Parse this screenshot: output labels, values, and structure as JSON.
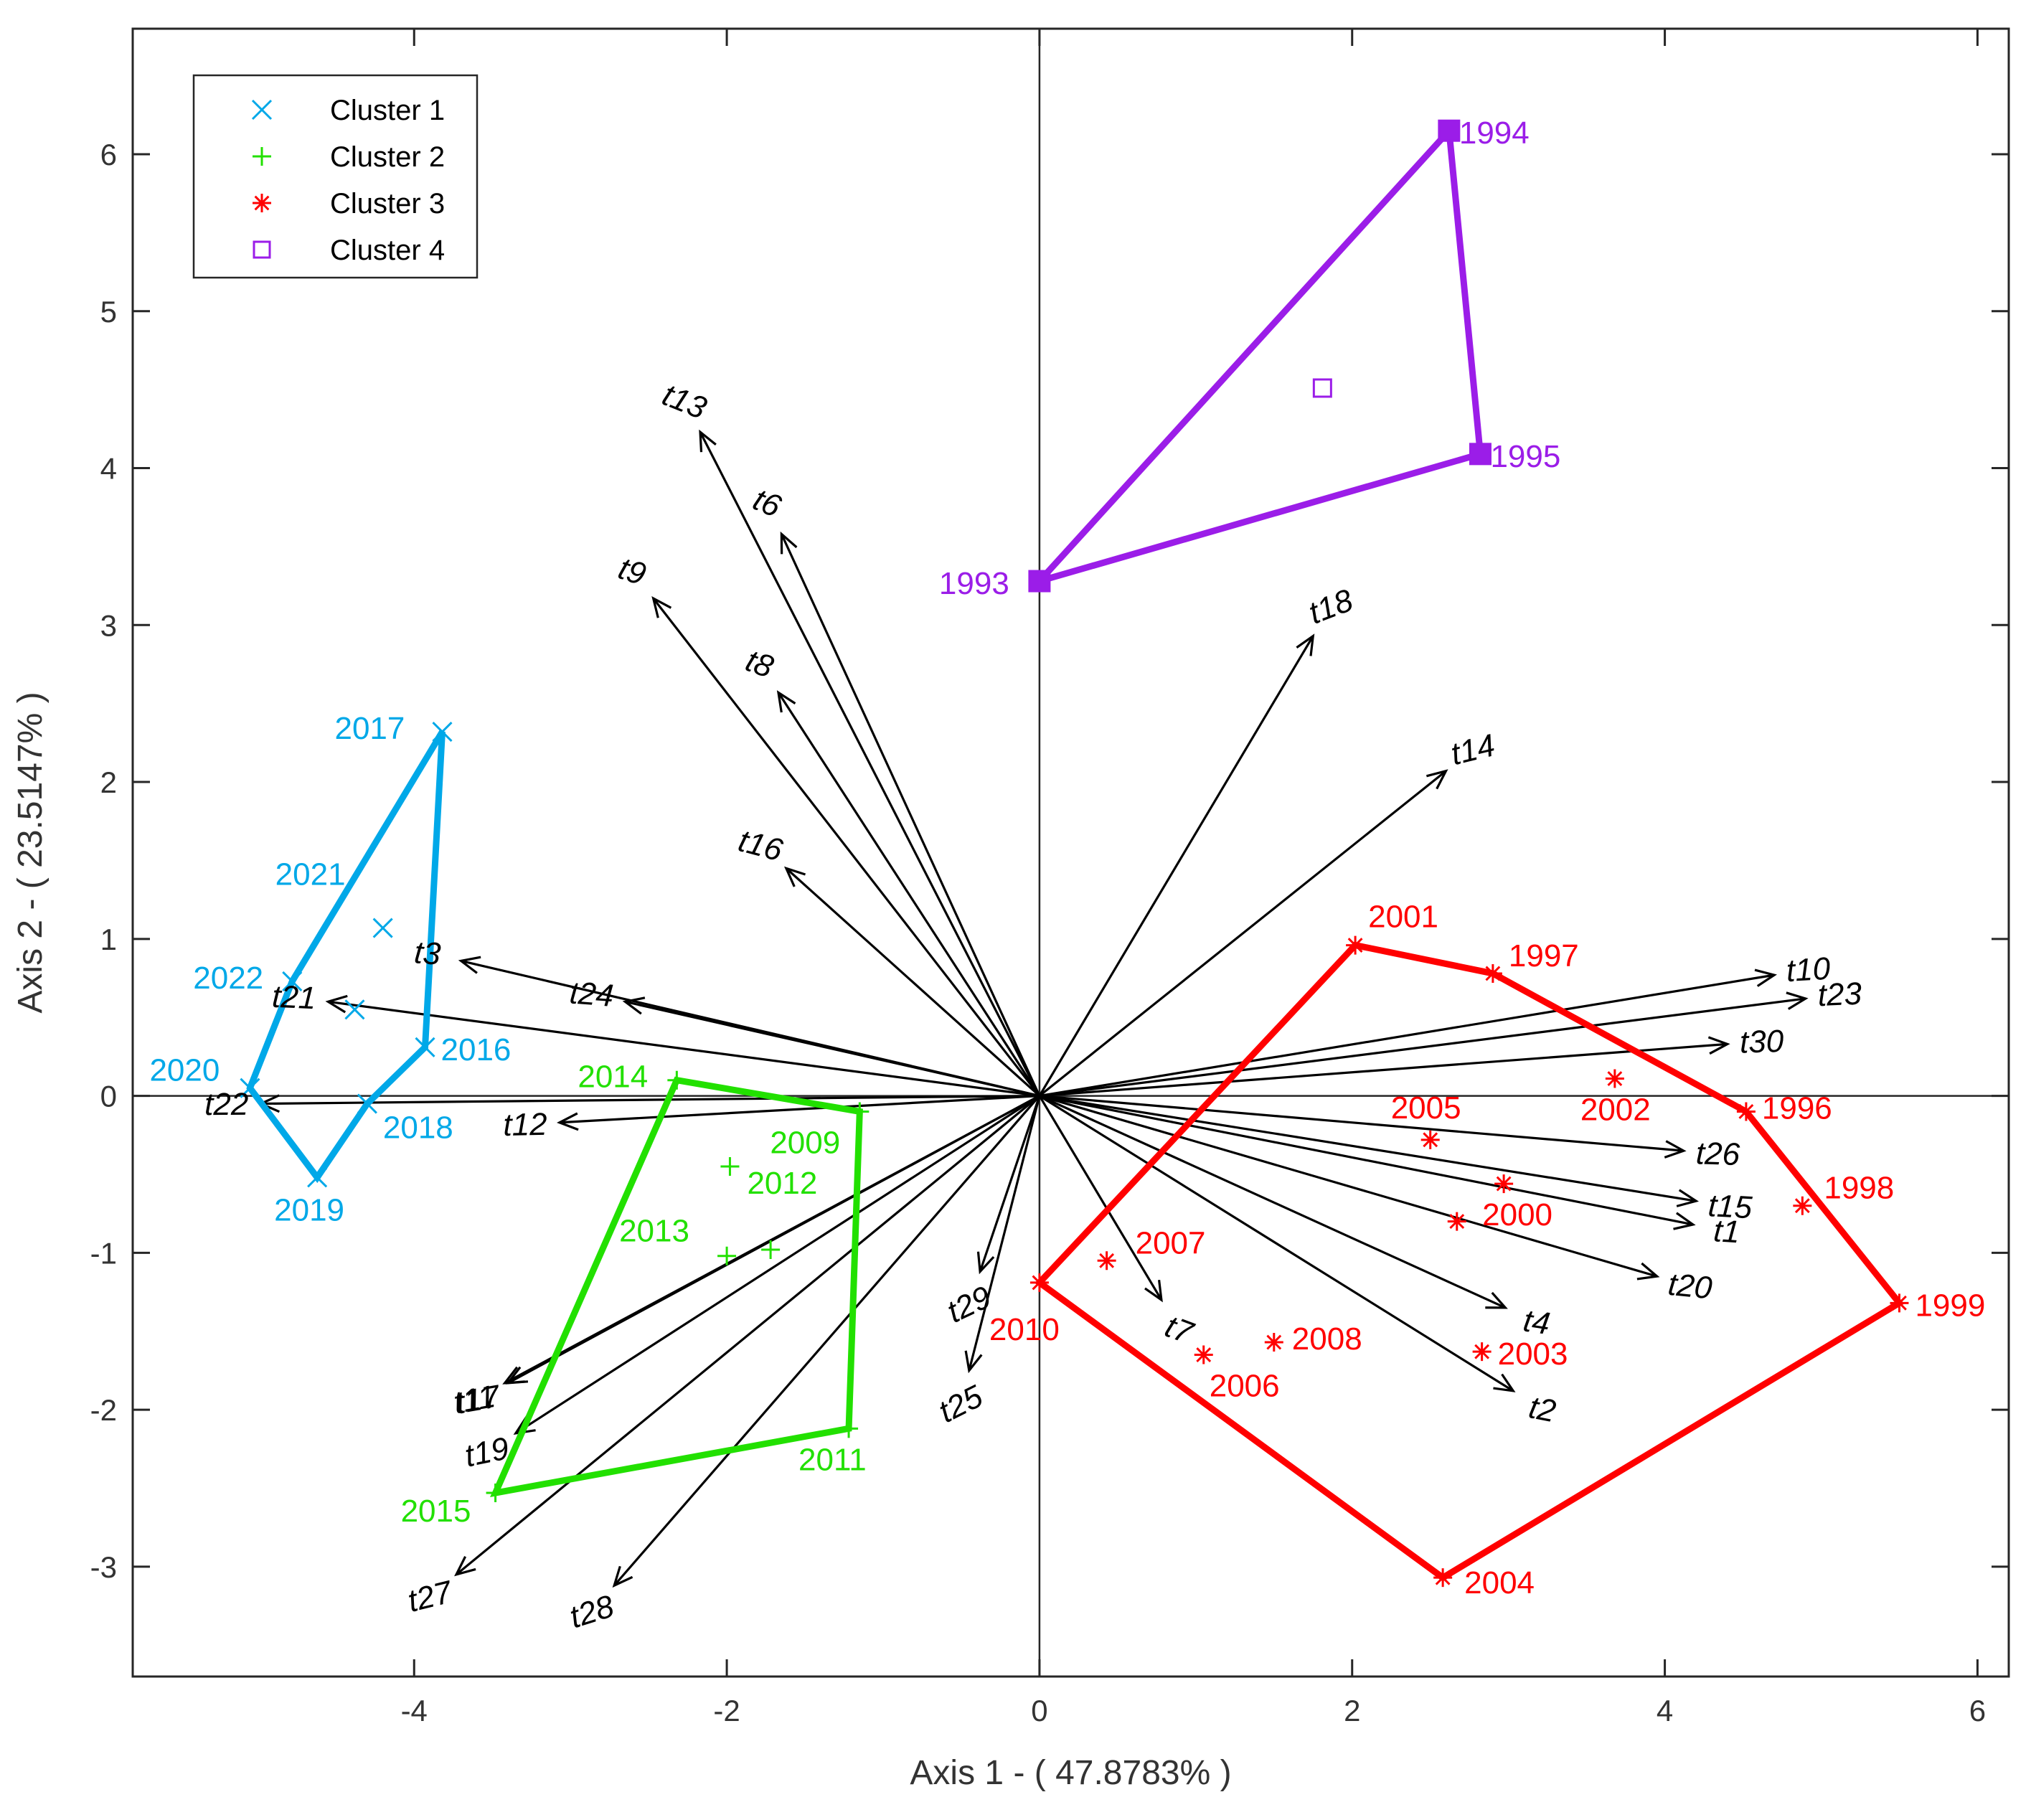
{
  "chart_data": {
    "type": "scatter",
    "title": "",
    "xlabel": "Axis 1 - ( 47.8783% )",
    "ylabel": "Axis 2 - ( 23.5147% )",
    "xlim": [
      -5.8,
      6.2
    ],
    "ylim": [
      -3.7,
      6.8
    ],
    "xticks": [
      -4,
      -2,
      0,
      2,
      4,
      6
    ],
    "xtick_labels": [
      "-4",
      "-2",
      "0",
      "2",
      "4",
      "6"
    ],
    "yticks": [
      -3,
      -2,
      -1,
      0,
      1,
      2,
      3,
      4,
      5,
      6
    ],
    "ytick_labels": [
      "-3",
      "-2",
      "-1",
      "0",
      "1",
      "2",
      "3",
      "4",
      "5",
      "6"
    ],
    "grid": false,
    "legend_position": "top-left",
    "series": [
      {
        "name": "Cluster 1",
        "color": "#00a8e8",
        "marker": "x",
        "points": [
          {
            "label": "2016",
            "x": -3.93,
            "y": 0.31
          },
          {
            "label": "2017",
            "x": -3.82,
            "y": 2.32
          },
          {
            "label": "2018",
            "x": -4.3,
            "y": -0.05
          },
          {
            "label": "2019",
            "x": -4.62,
            "y": -0.52
          },
          {
            "label": "2020",
            "x": -5.05,
            "y": 0.05
          },
          {
            "label": "2021",
            "x": -4.2,
            "y": 1.07
          },
          {
            "label": "2022",
            "x": -4.78,
            "y": 0.73
          },
          {
            "label": "",
            "x": -4.38,
            "y": 0.55
          }
        ],
        "hull": [
          "2017",
          "2016",
          "2018",
          "2019",
          "2020",
          "2022"
        ],
        "centroid": null
      },
      {
        "name": "Cluster 2",
        "color": "#22e000",
        "marker": "+",
        "points": [
          {
            "label": "2009",
            "x": -1.15,
            "y": -0.1
          },
          {
            "label": "2011",
            "x": -1.22,
            "y": -2.12
          },
          {
            "label": "2012",
            "x": -1.98,
            "y": -0.45
          },
          {
            "label": "2013",
            "x": -2.0,
            "y": -1.02
          },
          {
            "label": "2014",
            "x": -2.32,
            "y": 0.1
          },
          {
            "label": "2015",
            "x": -3.48,
            "y": -2.53
          },
          {
            "label": "",
            "x": -1.72,
            "y": -0.98
          }
        ],
        "hull": [
          "2014",
          "2009",
          "2011",
          "2015"
        ],
        "centroid": null
      },
      {
        "name": "Cluster 3",
        "color": "#ff0000",
        "marker": "*",
        "points": [
          {
            "label": "1996",
            "x": 4.52,
            "y": -0.1
          },
          {
            "label": "1997",
            "x": 2.9,
            "y": 0.78
          },
          {
            "label": "1998",
            "x": 4.88,
            "y": -0.7
          },
          {
            "label": "1999",
            "x": 5.5,
            "y": -1.32
          },
          {
            "label": "2000",
            "x": 2.97,
            "y": -0.56
          },
          {
            "label": "2001",
            "x": 2.02,
            "y": 0.96
          },
          {
            "label": "2002",
            "x": 3.68,
            "y": 0.11
          },
          {
            "label": "2003",
            "x": 2.83,
            "y": -1.63
          },
          {
            "label": "2004",
            "x": 2.58,
            "y": -3.07
          },
          {
            "label": "2005",
            "x": 2.5,
            "y": -0.28
          },
          {
            "label": "2006",
            "x": 1.05,
            "y": -1.65
          },
          {
            "label": "2007",
            "x": 0.43,
            "y": -1.05
          },
          {
            "label": "2008",
            "x": 1.5,
            "y": -1.57
          },
          {
            "label": "2010",
            "x": 0.0,
            "y": -1.19
          },
          {
            "label": "",
            "x": 2.67,
            "y": -0.8
          }
        ],
        "hull": [
          "2001",
          "1997",
          "1996",
          "1999",
          "2004",
          "2010"
        ],
        "centroid": null
      },
      {
        "name": "Cluster 4",
        "color": "#9b1de8",
        "marker": "square",
        "points": [
          {
            "label": "1993",
            "x": 0.0,
            "y": 3.28
          },
          {
            "label": "1994",
            "x": 2.62,
            "y": 6.15
          },
          {
            "label": "1995",
            "x": 2.82,
            "y": 4.09
          }
        ],
        "hull": [
          "1993",
          "1994",
          "1995"
        ],
        "centroid": {
          "x": 1.81,
          "y": 4.51
        }
      }
    ],
    "vectors": [
      {
        "label": "t1",
        "x": 4.18,
        "y": -0.82
      },
      {
        "label": "t2",
        "x": 3.03,
        "y": -1.88
      },
      {
        "label": "t3",
        "x": -3.7,
        "y": 0.86
      },
      {
        "label": "t4",
        "x": 2.98,
        "y": -1.35
      },
      {
        "label": "t6",
        "x": -1.65,
        "y": 3.58
      },
      {
        "label": "t7",
        "x": 0.78,
        "y": -1.3
      },
      {
        "label": "t8",
        "x": -1.67,
        "y": 2.57
      },
      {
        "label": "t9",
        "x": -2.47,
        "y": 3.17
      },
      {
        "label": "t10",
        "x": 4.7,
        "y": 0.77
      },
      {
        "label": "t11",
        "x": -3.42,
        "y": -1.83
      },
      {
        "label": "t12",
        "x": -3.07,
        "y": -0.17
      },
      {
        "label": "t13",
        "x": -2.17,
        "y": 4.23
      },
      {
        "label": "t14",
        "x": 2.6,
        "y": 2.07
      },
      {
        "label": "t15",
        "x": 4.2,
        "y": -0.67
      },
      {
        "label": "t16",
        "x": -1.62,
        "y": 1.45
      },
      {
        "label": "t17",
        "x": -3.4,
        "y": -1.83
      },
      {
        "label": "t18",
        "x": 1.75,
        "y": 2.93
      },
      {
        "label": "t19",
        "x": -3.35,
        "y": -2.15
      },
      {
        "label": "t20",
        "x": 3.95,
        "y": -1.15
      },
      {
        "label": "t21",
        "x": -4.55,
        "y": 0.6
      },
      {
        "label": "t22",
        "x": -4.98,
        "y": -0.05
      },
      {
        "label": "t23",
        "x": 4.9,
        "y": 0.62
      },
      {
        "label": "t24",
        "x": -2.65,
        "y": 0.6
      },
      {
        "label": "t25",
        "x": -0.45,
        "y": -1.75
      },
      {
        "label": "t26",
        "x": 4.12,
        "y": -0.35
      },
      {
        "label": "t27",
        "x": -3.73,
        "y": -3.05
      },
      {
        "label": "t28",
        "x": -2.72,
        "y": -3.12
      },
      {
        "label": "t29",
        "x": -0.38,
        "y": -1.12
      },
      {
        "label": "t30",
        "x": 4.4,
        "y": 0.33
      }
    ]
  }
}
